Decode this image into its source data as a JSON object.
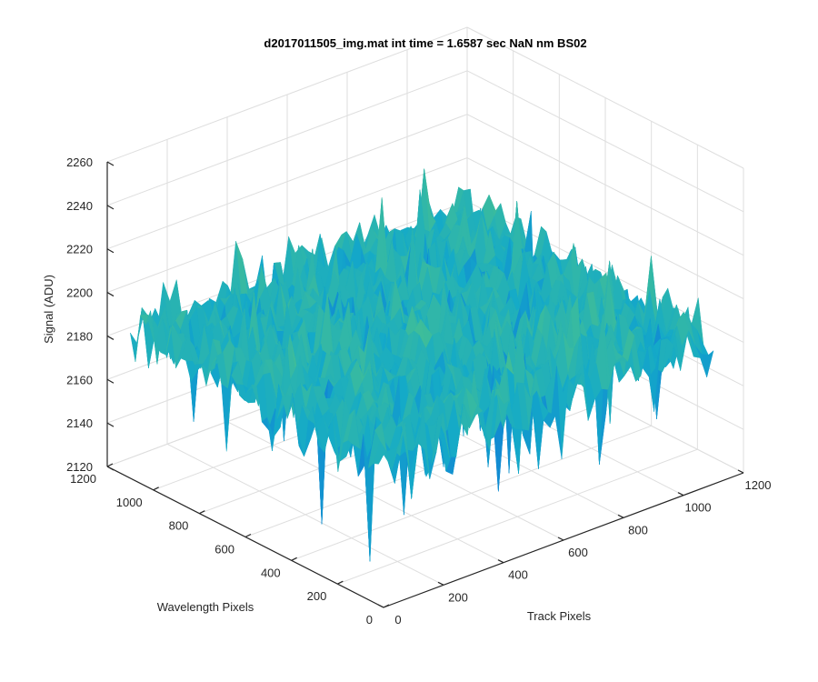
{
  "chart_data": {
    "type": "surface",
    "title": "d2017011505_img.mat int time = 1.6587 sec  NaN nm BS02",
    "xlabel": "Track Pixels",
    "ylabel": "Wavelength Pixels",
    "zlabel": "Signal (ADU)",
    "xlim": [
      0,
      1200
    ],
    "ylim": [
      0,
      1200
    ],
    "zlim": [
      2120,
      2260
    ],
    "x_ticks": [
      "0",
      "200",
      "400",
      "600",
      "800",
      "1000",
      "1200"
    ],
    "y_ticks": [
      "0",
      "200",
      "400",
      "600",
      "800",
      "1000",
      "1200"
    ],
    "z_ticks": [
      "2120",
      "2140",
      "2160",
      "2180",
      "2200",
      "2220",
      "2240",
      "2260"
    ],
    "data_extent": {
      "x": [
        0,
        1100
      ],
      "y": [
        0,
        1100
      ]
    },
    "mean_signal": 2187,
    "signal_range": [
      2127,
      2250
    ],
    "grid": true,
    "colormap": "parula"
  }
}
